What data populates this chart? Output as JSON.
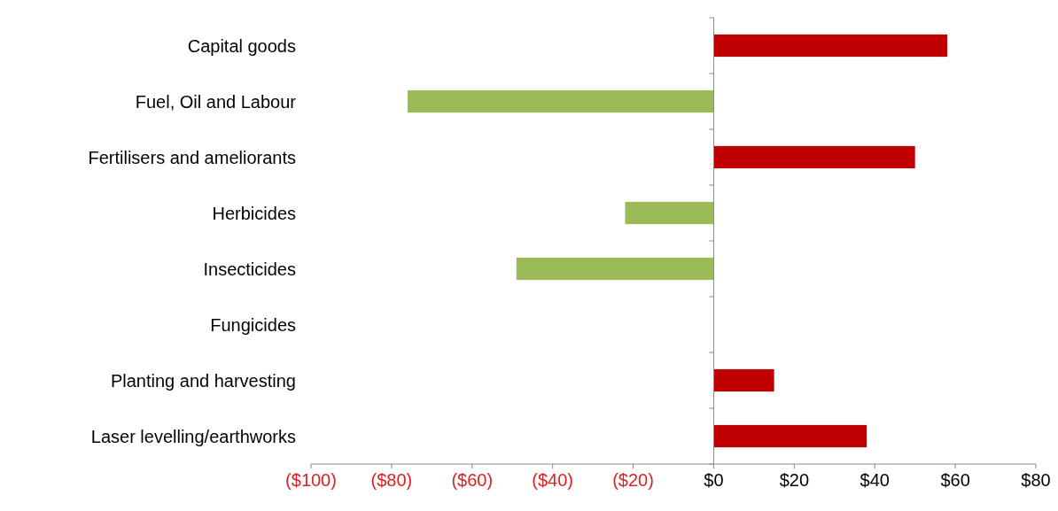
{
  "chart_data": {
    "type": "bar",
    "orientation": "horizontal",
    "categories": [
      "Capital goods",
      "Fuel, Oil and Labour",
      "Fertilisers and ameliorants",
      "Herbicides",
      "Insecticides",
      "Fungicides",
      "Planting and harvesting",
      "Laser levelling/earthworks"
    ],
    "values": [
      58,
      -76,
      50,
      -22,
      -49,
      0,
      15,
      38
    ],
    "colors": [
      "#c00000",
      "#9bbb59",
      "#c00000",
      "#9bbb59",
      "#9bbb59",
      "#9bbb59",
      "#c00000",
      "#c00000"
    ],
    "xlim": [
      -100,
      80
    ],
    "xticks": [
      {
        "value": -100,
        "label": "($100)"
      },
      {
        "value": -80,
        "label": "($80)"
      },
      {
        "value": -60,
        "label": "($60)"
      },
      {
        "value": -40,
        "label": "($40)"
      },
      {
        "value": -20,
        "label": "($20)"
      },
      {
        "value": 0,
        "label": "$0"
      },
      {
        "value": 20,
        "label": "$20"
      },
      {
        "value": 40,
        "label": "$40"
      },
      {
        "value": 60,
        "label": "$60"
      },
      {
        "value": 80,
        "label": "$80"
      }
    ],
    "tick_labels": "x"
  }
}
